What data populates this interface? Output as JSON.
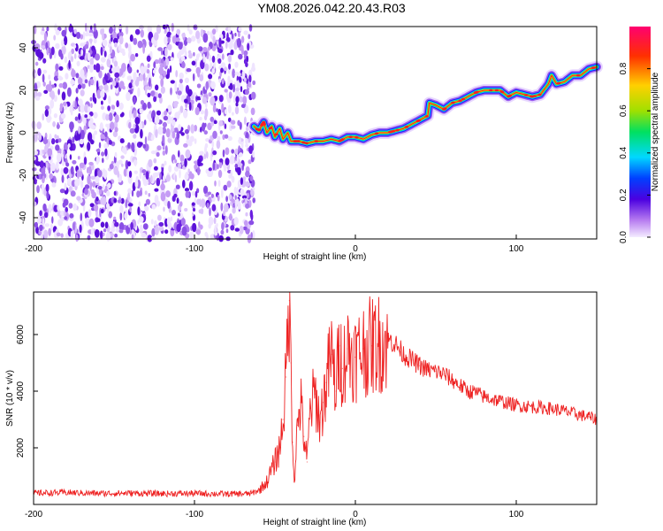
{
  "title": "YM08.2026.042.20.43.R03",
  "chart_data": [
    {
      "type": "heatmap",
      "name": "spectrogram",
      "xlabel": "Height of straight line (km)",
      "ylabel": "Frequency (Hz)",
      "xlim": [
        -200,
        150
      ],
      "ylim": [
        -50,
        50
      ],
      "xticks": [
        -200,
        -100,
        0,
        100
      ],
      "yticks": [
        -40,
        -20,
        0,
        20,
        40
      ],
      "noise_region_x": [
        -200,
        -63
      ],
      "colorbar": {
        "label": "Normalized spectral amplitude",
        "range": [
          0,
          1
        ],
        "ticks": [
          0.0,
          0.2,
          0.4,
          0.6,
          0.8
        ]
      },
      "ridge": {
        "description": "peak frequency track",
        "x": [
          -63,
          -60,
          -57,
          -55,
          -52,
          -50,
          -47,
          -45,
          -42,
          -40,
          -35,
          -30,
          -25,
          -20,
          -15,
          -10,
          -5,
          0,
          5,
          10,
          15,
          20,
          25,
          30,
          35,
          40,
          45,
          46,
          50,
          55,
          60,
          65,
          70,
          75,
          80,
          85,
          90,
          95,
          100,
          105,
          110,
          115,
          120,
          122,
          125,
          130,
          135,
          140,
          145,
          150
        ],
        "y": [
          3,
          1,
          5,
          0,
          3,
          -2,
          2,
          -3,
          0,
          -4,
          -4,
          -5,
          -4,
          -4,
          -3,
          -4,
          -2,
          -2,
          -3,
          -1,
          0,
          0,
          1,
          2,
          4,
          6,
          8,
          14,
          13,
          11,
          14,
          15,
          17,
          19,
          20,
          20,
          20,
          17,
          19,
          18,
          17,
          18,
          23,
          27,
          23,
          24,
          27,
          27,
          30,
          31
        ]
      }
    },
    {
      "type": "line",
      "name": "snr",
      "xlabel": "Height of straight line (km)",
      "ylabel": "SNR (10 * v/v)",
      "xlim": [
        -200,
        150
      ],
      "ylim": [
        0,
        7500
      ],
      "xticks": [
        -200,
        -100,
        0,
        100
      ],
      "yticks": [
        2000,
        4000,
        6000
      ],
      "color": "#ee2222",
      "series": [
        {
          "name": "SNR",
          "x": [
            -200,
            -180,
            -160,
            -140,
            -120,
            -100,
            -80,
            -65,
            -60,
            -55,
            -50,
            -47,
            -45,
            -43,
            -42,
            -41,
            -40,
            -39,
            -38,
            -36,
            -34,
            -32,
            -30,
            -28,
            -25,
            -22,
            -20,
            -18,
            -15,
            -12,
            -10,
            -8,
            -5,
            0,
            5,
            10,
            15,
            20,
            22,
            25,
            30,
            35,
            40,
            45,
            50,
            55,
            60,
            65,
            70,
            75,
            80,
            90,
            100,
            110,
            120,
            130,
            140,
            145,
            150
          ],
          "y": [
            400,
            420,
            390,
            400,
            380,
            390,
            370,
            380,
            500,
            800,
            1500,
            2000,
            3000,
            4500,
            6300,
            7200,
            5000,
            2200,
            800,
            2800,
            3600,
            2400,
            1500,
            3400,
            3900,
            2900,
            3600,
            4300,
            5300,
            4000,
            5600,
            4800,
            5500,
            5200,
            5500,
            5600,
            5700,
            5750,
            5800,
            5650,
            5300,
            5100,
            4900,
            4750,
            4700,
            4600,
            4400,
            4200,
            4000,
            3950,
            3800,
            3650,
            3500,
            3450,
            3400,
            3300,
            3150,
            3100,
            3000
          ]
        }
      ]
    }
  ]
}
